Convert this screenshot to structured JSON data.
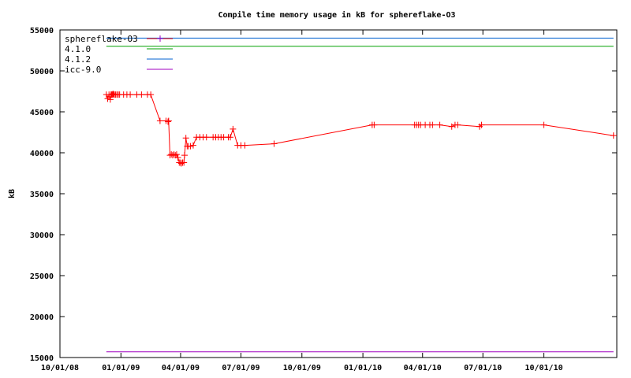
{
  "chart_data": {
    "type": "line",
    "title": "Compile time memory usage in kB for sphereflake-O3",
    "xlabel": "",
    "ylabel": "kB",
    "ylim": [
      15000,
      55000
    ],
    "xlim": [
      "2008-10-01",
      "2011-01-19"
    ],
    "y_ticks": [
      15000,
      20000,
      25000,
      30000,
      35000,
      40000,
      45000,
      50000,
      55000
    ],
    "x_ticks": [
      "2008-10-01",
      "2009-01-01",
      "2009-04-01",
      "2009-07-01",
      "2009-10-01",
      "2010-01-01",
      "2010-04-01",
      "2010-07-01",
      "2010-10-01"
    ],
    "x_tick_labels": [
      "10/01/08",
      "01/01/09",
      "04/01/09",
      "07/01/09",
      "10/01/09",
      "01/01/10",
      "04/01/10",
      "07/01/10",
      "10/01/10"
    ],
    "grid": false,
    "legend_position": "top-left",
    "colors": {
      "main": "#ff0000",
      "gcc410": "#00a000",
      "gcc412": "#0060d0",
      "icc": "#a000c0",
      "axis": "#000000"
    },
    "series": [
      {
        "name": "sphereflake-O3",
        "color": "#ff0000",
        "marker": "plus",
        "x": [
          "2008-12-10",
          "2008-12-12",
          "2008-12-14",
          "2008-12-16",
          "2008-12-17",
          "2008-12-18",
          "2008-12-19",
          "2008-12-20",
          "2008-12-21",
          "2008-12-22",
          "2008-12-24",
          "2008-12-26",
          "2008-12-28",
          "2008-12-30",
          "2009-01-05",
          "2009-01-10",
          "2009-01-15",
          "2009-01-25",
          "2009-02-01",
          "2009-02-10",
          "2009-02-15",
          "2009-03-01",
          "2009-03-10",
          "2009-03-13",
          "2009-03-14",
          "2009-03-16",
          "2009-03-18",
          "2009-03-20",
          "2009-03-22",
          "2009-03-24",
          "2009-03-26",
          "2009-03-28",
          "2009-03-30",
          "2009-04-01",
          "2009-04-02",
          "2009-04-04",
          "2009-04-06",
          "2009-04-07",
          "2009-04-09",
          "2009-04-11",
          "2009-04-13",
          "2009-04-16",
          "2009-04-20",
          "2009-04-25",
          "2009-04-30",
          "2009-05-05",
          "2009-05-10",
          "2009-05-20",
          "2009-05-24",
          "2009-05-28",
          "2009-06-01",
          "2009-06-05",
          "2009-06-12",
          "2009-06-15",
          "2009-06-19",
          "2009-06-26",
          "2009-07-01",
          "2009-07-07",
          "2009-08-20",
          "2010-01-15",
          "2010-01-18",
          "2010-03-20",
          "2010-03-23",
          "2010-03-26",
          "2010-03-29",
          "2010-04-05",
          "2010-04-12",
          "2010-04-16",
          "2010-04-27",
          "2010-05-15",
          "2010-05-20",
          "2010-05-24",
          "2010-06-26",
          "2010-06-29",
          "2010-10-01",
          "2011-01-14"
        ],
        "values": [
          47100,
          46600,
          47100,
          46500,
          47100,
          47100,
          47100,
          47200,
          47100,
          47100,
          47100,
          47100,
          47100,
          47100,
          47100,
          47100,
          47100,
          47100,
          47100,
          47100,
          47100,
          43900,
          43900,
          43800,
          43900,
          39700,
          39800,
          39700,
          39800,
          39700,
          39800,
          39400,
          38800,
          38800,
          38700,
          38800,
          38800,
          39700,
          41800,
          40800,
          40800,
          40800,
          40900,
          41900,
          41900,
          41900,
          41900,
          41900,
          41900,
          41900,
          41900,
          41900,
          41900,
          41900,
          42900,
          40900,
          40900,
          40900,
          41100,
          43400,
          43400,
          43400,
          43400,
          43400,
          43400,
          43400,
          43400,
          43400,
          43400,
          43200,
          43400,
          43400,
          43200,
          43400,
          43400,
          42100
        ]
      },
      {
        "name": "4.1.0",
        "color": "#00a000",
        "value": 53000
      },
      {
        "name": "4.1.2",
        "color": "#0060d0",
        "value": 54000
      },
      {
        "name": "icc-9.0",
        "color": "#a000c0",
        "value": 15700
      }
    ]
  }
}
